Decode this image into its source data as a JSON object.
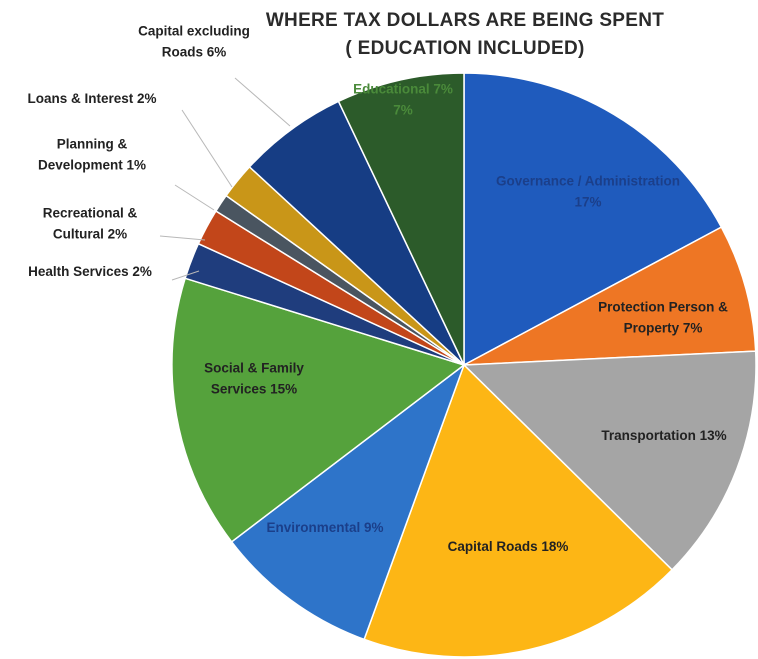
{
  "chart_data": {
    "type": "pie",
    "title": "WHERE TAX DOLLARS ARE BEING SPENT",
    "subtitle": "( EDUCATION INCLUDED)",
    "slices": [
      {
        "label": "Governance / Administration 17%",
        "label_lines": [
          "Governance / Administration",
          "17%"
        ],
        "value": 17,
        "color": "#1f5bbd",
        "label_color": "#1b3f8a"
      },
      {
        "label": "Protection Person & Property 7%",
        "label_lines": [
          "Protection Person &",
          "Property  7%"
        ],
        "value": 7,
        "color": "#ee7624",
        "label_color": "#222222"
      },
      {
        "label": "Transportation 13%",
        "label_lines": [
          "Transportation  13%"
        ],
        "value": 13,
        "color": "#a5a5a5",
        "label_color": "#222222"
      },
      {
        "label": "Capital Roads 18%",
        "label_lines": [
          "Capital Roads  18%"
        ],
        "value": 18,
        "color": "#fdb615",
        "label_color": "#222222"
      },
      {
        "label": "Environmental 9%",
        "label_lines": [
          "Environmental  9%"
        ],
        "value": 9,
        "color": "#2e74c9",
        "label_color": "#1b3f8a"
      },
      {
        "label": "Social & Family Services 15%",
        "label_lines": [
          "Social & Family",
          "Services  15%"
        ],
        "value": 15,
        "color": "#55a23c",
        "label_color": "#222222"
      },
      {
        "label": "Health Services 2%",
        "label_lines": [
          "Health Services  2%"
        ],
        "value": 2,
        "color": "#1f3d7d",
        "label_color": "#222222"
      },
      {
        "label": "Recreational & Cultural 2%",
        "label_lines": [
          "Recreational &",
          "Cultural  2%"
        ],
        "value": 2,
        "color": "#c2461a",
        "label_color": "#222222"
      },
      {
        "label": "Planning & Development 1%",
        "label_lines": [
          "Planning &",
          "Development  1%"
        ],
        "value": 1,
        "color": "#4a5560",
        "label_color": "#222222"
      },
      {
        "label": "Loans & Interest 2%",
        "label_lines": [
          "Loans & Interest  2%"
        ],
        "value": 2,
        "color": "#c99618",
        "label_color": "#222222"
      },
      {
        "label": "Capital excluding Roads 6%",
        "label_lines": [
          "Capital excluding",
          "Roads  6%"
        ],
        "value": 6,
        "color": "#163d84",
        "label_color": "#222222"
      },
      {
        "label": "Educational 7%",
        "label_lines": [
          "Educational  7%",
          "7%"
        ],
        "value": 7,
        "color": "#2c5b2a",
        "label_color": "#4a8a3a"
      }
    ],
    "legend": "none",
    "start_angle_deg": 0,
    "direction": "clockwise"
  }
}
